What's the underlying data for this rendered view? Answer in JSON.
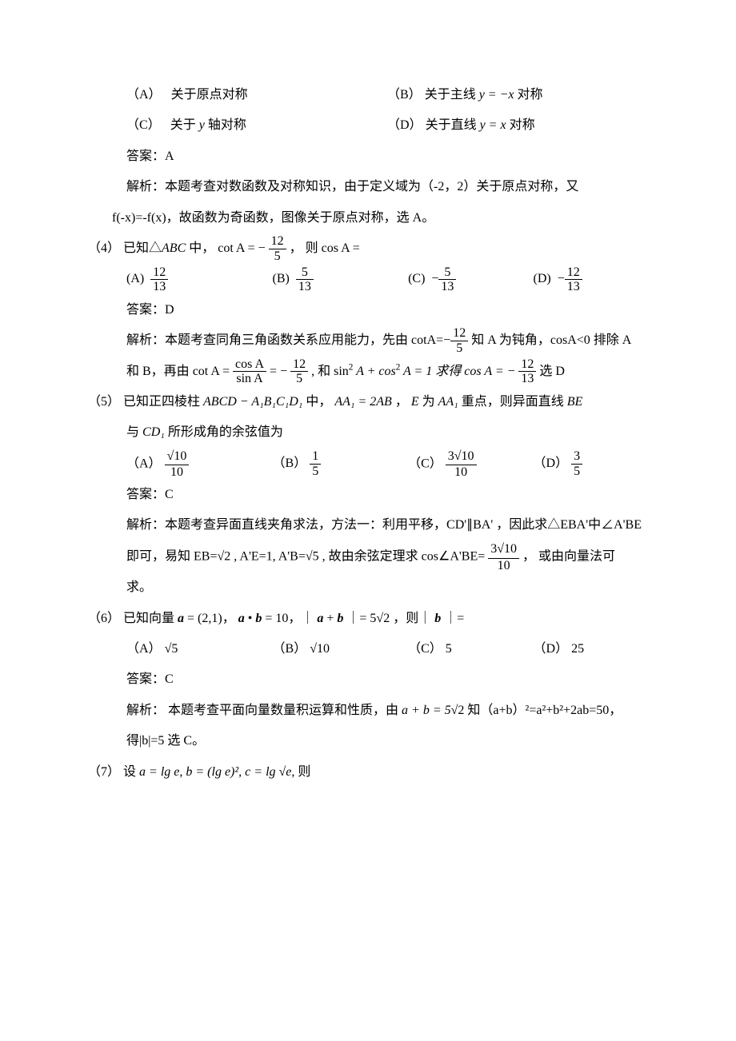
{
  "colors": {
    "text": "#000000",
    "bg": "#ffffff"
  },
  "font": {
    "body_family": "SimSun",
    "math_family": "Times New Roman",
    "body_size_pt": 12
  },
  "q3_opts": {
    "A_label": "（A）",
    "A_text": "关于原点对称",
    "B_label": "（B）",
    "B_text_pre": "关于主线 ",
    "B_text_post": " 对称",
    "B_eq": "y = −x",
    "C_label": "（C）",
    "C_text_pre": "关于 ",
    "C_text_post": " 轴对称",
    "C_sym": "y",
    "D_label": "（D）",
    "D_text_pre": "关于直线 ",
    "D_text_post": " 对称",
    "D_eq": "y = x"
  },
  "q3_answer_label": "答案：",
  "q3_answer": "A",
  "q3_ana_label": "解析：",
  "q3_ana_l1": "本题考查对数函数及对称知识，由于定义域为（-2，2）关于原点对称，又",
  "q3_ana_l2": "f(-x)=-f(x)，故函数为奇函数，图像关于原点对称，选 A。",
  "q4_num": "（4）",
  "q4_stem_pre": "已知△",
  "q4_stem_abc": "ABC",
  "q4_stem_mid": " 中，",
  "q4_stem_cot": "cot A = −",
  "q4_cot_num": "12",
  "q4_cot_den": "5",
  "q4_stem_post": "，  则 ",
  "q4_stem_cos": "cos A =",
  "q4_opts": {
    "A_label": "(A)",
    "A_num": "12",
    "A_den": "13",
    "B_label": "(B)",
    "B_num": "5",
    "B_den": "13",
    "C_label": "(C)",
    "C_num": "5",
    "C_den": "13",
    "C_neg": "−",
    "D_label": "(D)",
    "D_num": "12",
    "D_den": "13",
    "D_neg": "−"
  },
  "q4_answer_label": "答案：",
  "q4_answer": "D",
  "q4_ana_label": "解析：",
  "q4_ana_l1_a": "本题考查同角三角函数关系应用能力，先由 cotA=",
  "q4_ana_l1_neg": "−",
  "q4_ana_l1_num": "12",
  "q4_ana_l1_den": "5",
  "q4_ana_l1_b": " 知 A 为钝角，cosA<0 排除 A",
  "q4_ana_l2_a": "和 B，再由 ",
  "q4_ana_l2_cot": "cot A =",
  "q4_ana_l2_fr_n": "cos A",
  "q4_ana_l2_fr_d": "sin A",
  "q4_ana_l2_eq": " = −",
  "q4_ana_l2_num": "12",
  "q4_ana_l2_den": "5",
  "q4_ana_l2_mid": ", 和 sin",
  "q4_ana_l2_sq": "2",
  "q4_ana_l2_mid2": " A + cos",
  "q4_ana_l2_mid3": " A = 1 求得 cos A = −",
  "q4_ana_l2_rn": "12",
  "q4_ana_l2_rd": "13",
  "q4_ana_l2_end": " 选 D",
  "q5_num": "（5）",
  "q5_stem_a": " 已知正四棱柱 ",
  "q5_stem_prism": "ABCD − A₁B₁C₁D₁",
  "q5_stem_b": " 中，",
  "q5_stem_aa": "AA₁ = 2AB",
  "q5_stem_c": " ，",
  "q5_stem_E": "E",
  "q5_stem_d": " 为 ",
  "q5_stem_aa1": "AA₁",
  "q5_stem_e": " 重点，则异面直线 ",
  "q5_stem_be": "BE",
  "q5_stem_l2a": "与 ",
  "q5_stem_cd1": "CD₁",
  "q5_stem_l2b": " 所形成角的余弦值为",
  "q5_opts": {
    "A_label": "（A）",
    "A_num_rad": "10",
    "A_den": "10",
    "B_label": "（B）",
    "B_num": "1",
    "B_den": "5",
    "C_label": "（C）",
    "C_coef": "3",
    "C_num_rad": "10",
    "C_den": "10",
    "D_label": "（D）",
    "D_num": "3",
    "D_den": "5"
  },
  "q5_answer_label": "答案：",
  "q5_answer": "C",
  "q5_ana_label": "解析：",
  "q5_ana_l1": "本题考查异面直线夹角求法，方法一：利用平移，CD'∥BA' ，因此求△EBA'中∠A'BE",
  "q5_ana_l2_a": "即可，易知 EB=",
  "q5_ana_l2_r2": "2",
  "q5_ana_l2_b": " , A'E=1, A'B=",
  "q5_ana_l2_r5": "5",
  "q5_ana_l2_c": " , 故由余弦定理求 cos∠A'BE=",
  "q5_ana_l2_coef": "3",
  "q5_ana_l2_rad": "10",
  "q5_ana_l2_den": "10",
  "q5_ana_l2_d": " ， 或由向量法可",
  "q5_ana_l3": "求。",
  "q6_num": "（6）",
  "q6_stem_a": " 已知向量 ",
  "q6_a": "a",
  "q6_stem_b": " = (2,1)，  ",
  "q6_stem_c": " • ",
  "q6_b": "b",
  "q6_stem_d": " = 10，｜",
  "q6_stem_e": " + ",
  "q6_stem_f": " ｜= 5",
  "q6_stem_r2": "2",
  "q6_stem_g": "，则｜",
  "q6_stem_h": " ｜=",
  "q6_opts": {
    "A_label": "（A）",
    "A_rad": "5",
    "B_label": "（B）",
    "B_rad": "10",
    "C_label": "（C）",
    "C_val": "5",
    "D_label": "（D）",
    "D_val": "25"
  },
  "q6_answer_label": "答案：",
  "q6_answer": "C",
  "q6_ana_label": "解析：",
  "q6_ana_l1_a": "本题考查平面向量数量积运算和性质，由 ",
  "q6_ana_l1_expr": "a + b = 5",
  "q6_ana_l1_rad": "2",
  "q6_ana_l1_b": " 知（a+b）²=a²+b²+2ab=50，",
  "q6_ana_l2": "得|b|=5 选 C。",
  "q7_num": "（7）",
  "q7_stem_a": "设 ",
  "q7_a": "a = lg e, b = (lg e)²,  c = lg",
  "q7_rad": "e,",
  "q7_stem_b": " 则"
}
